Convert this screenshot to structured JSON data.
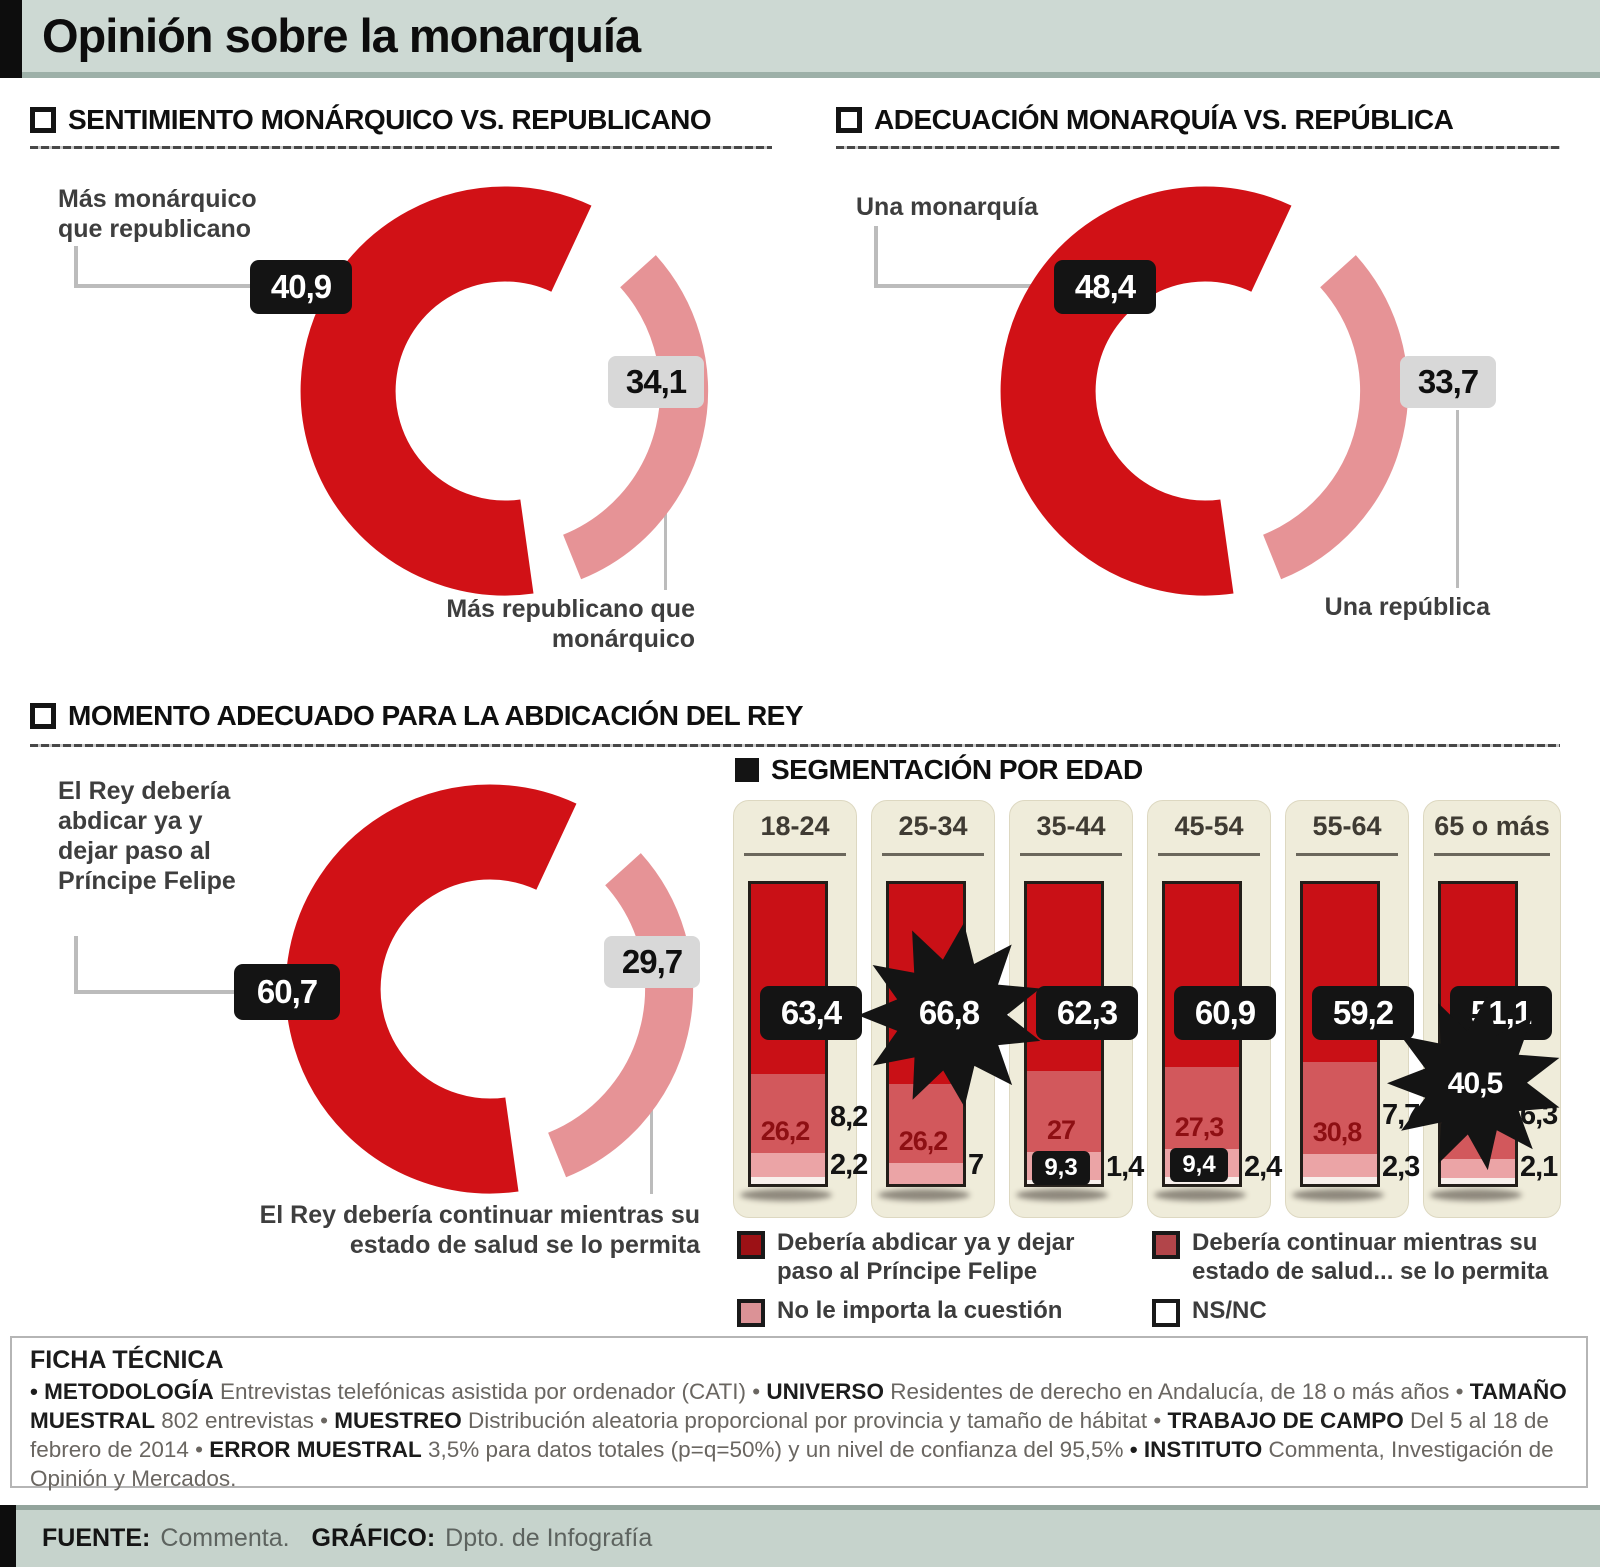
{
  "title": "Opinión sobre la monarquía",
  "sections": {
    "s1": {
      "title": "SENTIMIENTO MONÁRQUICO VS. REPUBLICANO"
    },
    "s2": {
      "title": "ADECUACIÓN MONARQUÍA VS. REPÚBLICA"
    },
    "s3": {
      "title": "MOMENTO ADECUADO PARA LA ABDICACIÓN DEL REY"
    },
    "s4": {
      "title": "SEGMENTACIÓN POR EDAD"
    }
  },
  "colors": {
    "dark_red": "#d11116",
    "pink_arc": "#e69396",
    "bar_abdicar": "#c91016",
    "bar_continuar": "#d2585c",
    "bar_no_importa": "#eba4a6",
    "bar_nsnc": "#f8f0ec",
    "header_band": "#cdd9d3",
    "cream": "#efecda",
    "chip_black": "#141414",
    "chip_gray": "#d8d8d8"
  },
  "chart_data": [
    {
      "type": "donut",
      "title": "SENTIMIENTO MONÁRQUICO VS. REPUBLICANO",
      "slices": [
        {
          "label": "Más monárquico que republicano",
          "value": 40.9,
          "display": "40,9"
        },
        {
          "label": "Más republicano que monárquico",
          "value": 34.1,
          "display": "34,1"
        }
      ]
    },
    {
      "type": "donut",
      "title": "ADECUACIÓN MONARQUÍA VS. REPÚBLICA",
      "slices": [
        {
          "label": "Una monarquía",
          "value": 48.4,
          "display": "48,4"
        },
        {
          "label": "Una república",
          "value": 33.7,
          "display": "33,7"
        }
      ]
    },
    {
      "type": "donut",
      "title": "MOMENTO ADECUADO PARA LA ABDICACIÓN DEL REY",
      "slices": [
        {
          "label": "El Rey debería abdicar ya y dejar paso al Príncipe Felipe",
          "value": 60.7,
          "display": "60,7"
        },
        {
          "label": "El Rey debería continuar mientras su estado de salud se lo permita",
          "value": 29.7,
          "display": "29,7"
        }
      ]
    },
    {
      "type": "bar",
      "subtype": "stacked",
      "title": "SEGMENTACIÓN POR EDAD",
      "categories": [
        "18-24",
        "25-34",
        "35-44",
        "45-54",
        "55-64",
        "65 o más"
      ],
      "series": [
        {
          "name": "Debería abdicar ya y dejar paso al Príncipe Felipe",
          "values": [
            63.4,
            66.8,
            62.3,
            60.9,
            59.2,
            51.1
          ],
          "displays": [
            "63,4",
            "66,8",
            "62,3",
            "60,9",
            "59,2",
            "51,1"
          ]
        },
        {
          "name": "Debería continuar mientras su estado de salud... se lo permita",
          "values": [
            26.2,
            26.2,
            27,
            27.3,
            30.8,
            40.5
          ],
          "displays": [
            "26,2",
            "26,2",
            "27",
            "27,3",
            "30,8",
            "40,5"
          ]
        },
        {
          "name": "No le importa la cuestión",
          "values": [
            8.2,
            7,
            9.3,
            9.4,
            7.7,
            6.3
          ],
          "displays": [
            "8,2",
            "7",
            "9,3",
            "9,4",
            "7,7",
            "6,3"
          ]
        },
        {
          "name": "NS/NC",
          "values": [
            2.2,
            0,
            1.4,
            2.4,
            2.3,
            2.1
          ],
          "displays": [
            "2,2",
            "",
            "1,4",
            "2,4",
            "2,3",
            "2,1"
          ]
        }
      ],
      "ylim": [
        0,
        100
      ]
    }
  ],
  "ficha": {
    "title": "FICHA TÉCNICA",
    "segments": [
      {
        "b": "• METODOLOGÍA",
        "t": " Entrevistas telefónicas asistida por ordenador (CATI) • "
      },
      {
        "b": "UNIVERSO",
        "t": " Residentes de derecho en Andalucía, de 18 o más años • "
      },
      {
        "b": "TAMAÑO MUESTRAL",
        "t": " 802 entrevistas • "
      },
      {
        "b": "MUESTREO",
        "t": " Distribución aleatoria proporcional por provincia y tamaño de hábitat • "
      },
      {
        "b": "TRABAJO DE CAMPO",
        "t": " Del 5 al 18 de febrero de 2014 • "
      },
      {
        "b": "ERROR MUESTRAL",
        "t": " 3,5% para datos totales (p=q=50%) y un nivel de confianza del 95,5% "
      },
      {
        "b": "• INSTITUTO",
        "t": " Commenta, Investigación de Opinión y Mercados."
      }
    ]
  },
  "footer": {
    "source_label": "FUENTE:",
    "source": "Commenta.",
    "graphic_label": "GRÁFICO:",
    "graphic": "Dpto. de Infografía"
  }
}
